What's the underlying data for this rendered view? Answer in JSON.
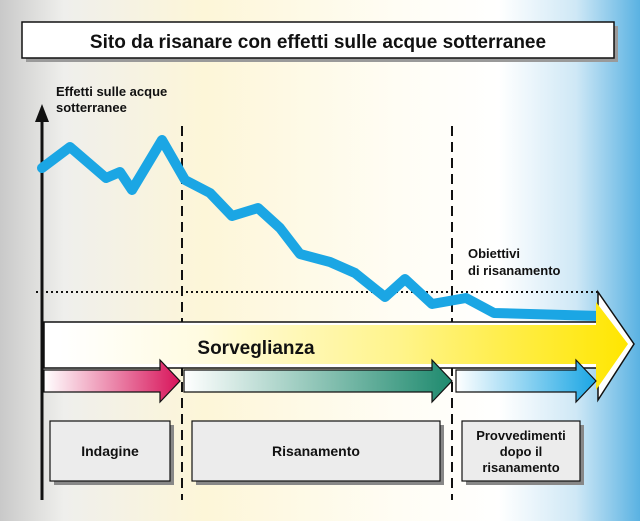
{
  "title": "Sito da risanare con effetti sulle acque sotterranee",
  "y_axis_label": [
    "Effetti sulle acque",
    "sotterranee"
  ],
  "target_label": [
    "Obiettivi",
    "di risanamento"
  ],
  "monitoring_label": "Sorveglianza",
  "phases": [
    {
      "label": [
        "Indagine"
      ]
    },
    {
      "label": [
        "Risanamento"
      ]
    },
    {
      "label": [
        "Provvedimenti",
        "dopo il",
        "risanamento"
      ]
    }
  ],
  "colors": {
    "curve": "#1ba6e4",
    "phase1_arrow": "#d8145a",
    "phase2_arrow": "#1e8a6e",
    "phase3_arrow": "#1ba6e4",
    "monitoring_arrow": "#ffe600",
    "background_right": "#5ab2e2"
  }
}
